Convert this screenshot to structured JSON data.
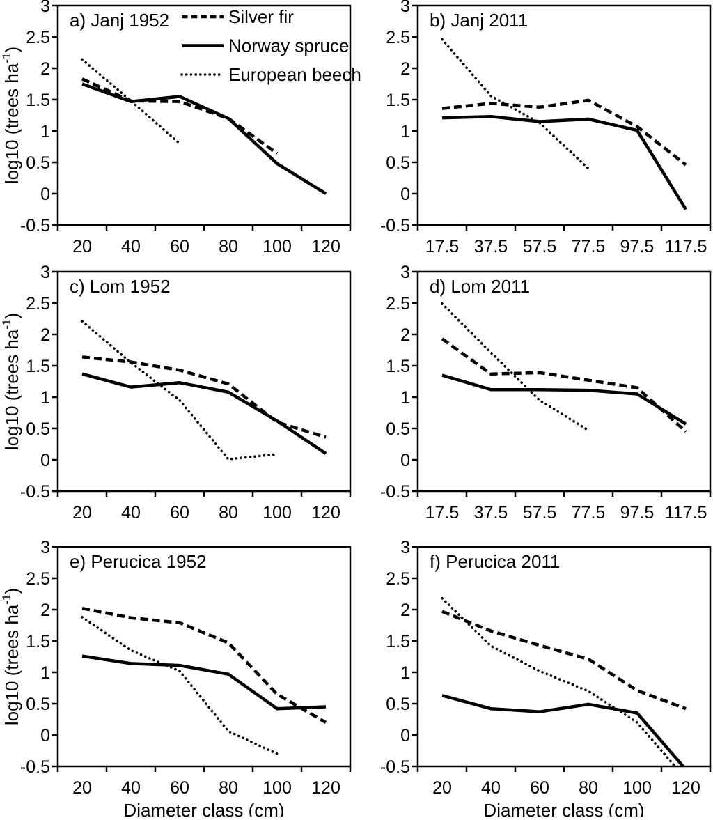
{
  "figure": {
    "background": "#ffffff",
    "line_color": "#000000",
    "ylabel": {
      "main": "log10 (trees ha",
      "sup": "-1",
      "end": ")"
    },
    "xlabel": "Diameter class (cm)",
    "legend": {
      "position": "inside-top-right-of-panel-a",
      "entries": [
        {
          "label": "Silver fir",
          "style": "dashed"
        },
        {
          "label": "Norway spruce",
          "style": "solid"
        },
        {
          "label": "European beech",
          "style": "dotted"
        }
      ]
    }
  },
  "chart_data": [
    {
      "id": "panel-a",
      "type": "line",
      "title": "a) Janj 1952",
      "x_labels": [
        "20",
        "40",
        "60",
        "80",
        "100",
        "120"
      ],
      "ylim": [
        -0.5,
        3
      ],
      "ytick_step": 0.5,
      "grid": false,
      "show_legend": true,
      "show_ylabel": true,
      "show_xlabel": false,
      "series": [
        {
          "name": "Silver fir",
          "style": "dashed",
          "values": [
            1.83,
            1.48,
            1.47,
            1.2,
            0.64,
            null
          ]
        },
        {
          "name": "Norway spruce",
          "style": "solid",
          "values": [
            1.75,
            1.47,
            1.55,
            1.2,
            0.48,
            0.0
          ]
        },
        {
          "name": "European beech",
          "style": "dotted",
          "values": [
            2.14,
            1.48,
            0.8,
            null,
            null,
            null
          ]
        }
      ]
    },
    {
      "id": "panel-b",
      "type": "line",
      "title": "b) Janj 2011",
      "x_labels": [
        "17.5",
        "37.5",
        "57.5",
        "77.5",
        "97.5",
        "117.5"
      ],
      "ylim": [
        -0.5,
        3
      ],
      "ytick_step": 0.5,
      "grid": false,
      "show_legend": false,
      "show_ylabel": false,
      "show_xlabel": false,
      "series": [
        {
          "name": "Silver fir",
          "style": "dashed",
          "values": [
            1.36,
            1.44,
            1.38,
            1.49,
            1.07,
            0.46
          ]
        },
        {
          "name": "Norway spruce",
          "style": "solid",
          "values": [
            1.21,
            1.23,
            1.15,
            1.19,
            1.01,
            -0.25
          ]
        },
        {
          "name": "European beech",
          "style": "dotted",
          "values": [
            2.46,
            1.56,
            1.13,
            0.4,
            null,
            null
          ]
        }
      ]
    },
    {
      "id": "panel-c",
      "type": "line",
      "title": "c) Lom 1952",
      "x_labels": [
        "20",
        "40",
        "60",
        "80",
        "100",
        "120"
      ],
      "ylim": [
        -0.5,
        3
      ],
      "ytick_step": 0.5,
      "grid": false,
      "show_legend": false,
      "show_ylabel": true,
      "show_xlabel": false,
      "series": [
        {
          "name": "Silver fir",
          "style": "dashed",
          "values": [
            1.64,
            1.56,
            1.43,
            1.21,
            0.6,
            0.36
          ]
        },
        {
          "name": "Norway spruce",
          "style": "solid",
          "values": [
            1.37,
            1.16,
            1.23,
            1.08,
            0.62,
            0.1
          ]
        },
        {
          "name": "European beech",
          "style": "dotted",
          "values": [
            2.21,
            1.55,
            0.95,
            0.01,
            0.09,
            null
          ]
        }
      ]
    },
    {
      "id": "panel-d",
      "type": "line",
      "title": "d) Lom 2011",
      "x_labels": [
        "17.5",
        "37.5",
        "57.5",
        "77.5",
        "97.5",
        "117.5"
      ],
      "ylim": [
        -0.5,
        3
      ],
      "ytick_step": 0.5,
      "grid": false,
      "show_legend": false,
      "show_ylabel": false,
      "show_xlabel": false,
      "series": [
        {
          "name": "Silver fir",
          "style": "dashed",
          "values": [
            1.93,
            1.37,
            1.39,
            1.27,
            1.15,
            0.45
          ]
        },
        {
          "name": "Norway spruce",
          "style": "solid",
          "values": [
            1.35,
            1.12,
            1.12,
            1.11,
            1.05,
            0.57
          ]
        },
        {
          "name": "European beech",
          "style": "dotted",
          "values": [
            2.49,
            1.71,
            0.95,
            0.47,
            null,
            null
          ]
        }
      ]
    },
    {
      "id": "panel-e",
      "type": "line",
      "title": "e) Perucica 1952",
      "x_labels": [
        "20",
        "40",
        "60",
        "80",
        "100",
        "120"
      ],
      "ylim": [
        -0.5,
        3
      ],
      "ytick_step": 0.5,
      "grid": false,
      "show_legend": false,
      "show_ylabel": true,
      "show_xlabel": true,
      "series": [
        {
          "name": "Silver fir",
          "style": "dashed",
          "values": [
            2.02,
            1.87,
            1.79,
            1.47,
            0.65,
            0.2
          ]
        },
        {
          "name": "Norway spruce",
          "style": "solid",
          "values": [
            1.26,
            1.14,
            1.11,
            0.97,
            0.42,
            0.45
          ]
        },
        {
          "name": "European beech",
          "style": "dotted",
          "values": [
            1.88,
            1.35,
            1.02,
            0.06,
            -0.3,
            null
          ]
        }
      ]
    },
    {
      "id": "panel-f",
      "type": "line",
      "title": "f) Perucica 2011",
      "x_labels": [
        "20",
        "40",
        "60",
        "80",
        "100",
        "120"
      ],
      "ylim": [
        -0.5,
        3
      ],
      "ytick_step": 0.5,
      "grid": false,
      "show_legend": false,
      "show_ylabel": false,
      "show_xlabel": true,
      "series": [
        {
          "name": "Silver fir",
          "style": "dashed",
          "values": [
            1.97,
            1.66,
            1.43,
            1.21,
            0.71,
            0.42
          ]
        },
        {
          "name": "Norway spruce",
          "style": "solid",
          "values": [
            0.63,
            0.42,
            0.37,
            0.49,
            0.35,
            -0.55
          ]
        },
        {
          "name": "European beech",
          "style": "dotted",
          "values": [
            2.18,
            1.42,
            1.02,
            0.7,
            0.2,
            -0.7
          ]
        }
      ]
    }
  ]
}
